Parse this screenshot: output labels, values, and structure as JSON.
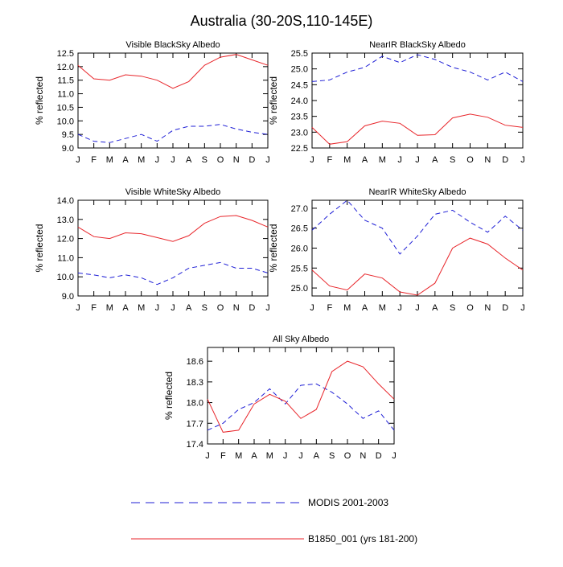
{
  "figure_title": "Australia (30-20S,110-145E)",
  "colors": {
    "modis": "#1f1fd6",
    "model": "#e8262b",
    "axis": "#000000"
  },
  "legend": {
    "modis_label": "MODIS 2001-2003",
    "model_label": "B1850_001 (yrs 181-200)"
  },
  "chart_data": [
    {
      "id": "visible-blacksky",
      "type": "line",
      "title": "Visible BlackSky Albedo",
      "ylabel": "% reflected",
      "xlabel": "",
      "categories": [
        "J",
        "F",
        "M",
        "A",
        "M",
        "J",
        "J",
        "A",
        "S",
        "O",
        "N",
        "D",
        "J"
      ],
      "ylim": [
        9.0,
        12.5
      ],
      "yticks": [
        "9.0",
        "9.5",
        "10.0",
        "10.5",
        "11.0",
        "11.5",
        "12.0",
        "12.5"
      ],
      "series": [
        {
          "name": "MODIS 2001-2003",
          "style": "dashed",
          "values": [
            9.5,
            9.25,
            9.2,
            9.35,
            9.5,
            9.25,
            9.65,
            9.8,
            9.8,
            9.87,
            9.7,
            9.58,
            9.5
          ]
        },
        {
          "name": "B1850_001 (yrs 181-200)",
          "style": "solid",
          "values": [
            12.05,
            11.55,
            11.5,
            11.7,
            11.65,
            11.5,
            11.2,
            11.45,
            12.05,
            12.35,
            12.45,
            12.25,
            12.05
          ]
        }
      ]
    },
    {
      "id": "nearir-blacksky",
      "type": "line",
      "title": "NearIR BlackSky Albedo",
      "ylabel": "% reflected",
      "xlabel": "",
      "categories": [
        "J",
        "F",
        "M",
        "A",
        "M",
        "J",
        "J",
        "A",
        "S",
        "O",
        "N",
        "D",
        "J"
      ],
      "ylim": [
        22.5,
        25.5
      ],
      "yticks": [
        "22.5",
        "23.0",
        "23.5",
        "24.0",
        "24.5",
        "25.0",
        "25.5"
      ],
      "series": [
        {
          "name": "MODIS 2001-2003",
          "style": "dashed",
          "values": [
            24.6,
            24.65,
            24.9,
            25.05,
            25.4,
            25.2,
            25.45,
            25.3,
            25.05,
            24.9,
            24.65,
            24.9,
            24.6
          ]
        },
        {
          "name": "B1850_001 (yrs 181-200)",
          "style": "solid",
          "values": [
            23.15,
            22.62,
            22.7,
            23.2,
            23.35,
            23.28,
            22.9,
            22.92,
            23.45,
            23.57,
            23.47,
            23.22,
            23.15
          ]
        }
      ]
    },
    {
      "id": "visible-whitesky",
      "type": "line",
      "title": "Visible WhiteSky Albedo",
      "ylabel": "% reflected",
      "xlabel": "",
      "categories": [
        "J",
        "F",
        "M",
        "A",
        "M",
        "J",
        "J",
        "A",
        "S",
        "O",
        "N",
        "D",
        "J"
      ],
      "ylim": [
        9.0,
        14.0
      ],
      "yticks": [
        "9.0",
        "10.0",
        "11.0",
        "12.0",
        "13.0",
        "14.0"
      ],
      "series": [
        {
          "name": "MODIS 2001-2003",
          "style": "dashed",
          "values": [
            10.2,
            10.1,
            9.95,
            10.1,
            9.95,
            9.6,
            9.95,
            10.45,
            10.6,
            10.75,
            10.45,
            10.45,
            10.2
          ]
        },
        {
          "name": "B1850_001 (yrs 181-200)",
          "style": "solid",
          "values": [
            12.6,
            12.1,
            12.0,
            12.3,
            12.25,
            12.05,
            11.85,
            12.15,
            12.8,
            13.15,
            13.2,
            12.95,
            12.6
          ]
        }
      ]
    },
    {
      "id": "nearir-whitesky",
      "type": "line",
      "title": "NearIR WhiteSky Albedo",
      "ylabel": "% reflected",
      "xlabel": "",
      "categories": [
        "J",
        "F",
        "M",
        "A",
        "M",
        "J",
        "J",
        "A",
        "S",
        "O",
        "N",
        "D",
        "J"
      ],
      "ylim": [
        24.8,
        27.2
      ],
      "yticks": [
        "25.0",
        "25.5",
        "26.0",
        "26.5",
        "27.0"
      ],
      "series": [
        {
          "name": "MODIS 2001-2003",
          "style": "dashed",
          "values": [
            26.45,
            26.85,
            27.2,
            26.7,
            26.5,
            25.85,
            26.3,
            26.85,
            26.95,
            26.65,
            26.4,
            26.8,
            26.45
          ]
        },
        {
          "name": "B1850_001 (yrs 181-200)",
          "style": "solid",
          "values": [
            25.45,
            25.05,
            24.95,
            25.35,
            25.25,
            24.9,
            24.82,
            25.12,
            26.0,
            26.25,
            26.1,
            25.75,
            25.45
          ]
        }
      ]
    },
    {
      "id": "allsky",
      "type": "line",
      "title": "All Sky Albedo",
      "ylabel": "% reflected",
      "xlabel": "",
      "categories": [
        "J",
        "F",
        "M",
        "A",
        "M",
        "J",
        "J",
        "A",
        "S",
        "O",
        "N",
        "D",
        "J"
      ],
      "ylim": [
        17.4,
        18.8
      ],
      "yticks": [
        "17.4",
        "17.7",
        "18.0",
        "18.3",
        "18.6"
      ],
      "series": [
        {
          "name": "MODIS 2001-2003",
          "style": "dashed",
          "values": [
            17.6,
            17.7,
            17.9,
            18.0,
            18.2,
            17.98,
            18.25,
            18.27,
            18.15,
            17.98,
            17.77,
            17.88,
            17.6
          ]
        },
        {
          "name": "B1850_001 (yrs 181-200)",
          "style": "solid",
          "values": [
            18.05,
            17.57,
            17.6,
            17.98,
            18.12,
            18.02,
            17.77,
            17.9,
            18.45,
            18.6,
            18.52,
            18.27,
            18.05
          ]
        }
      ]
    }
  ]
}
